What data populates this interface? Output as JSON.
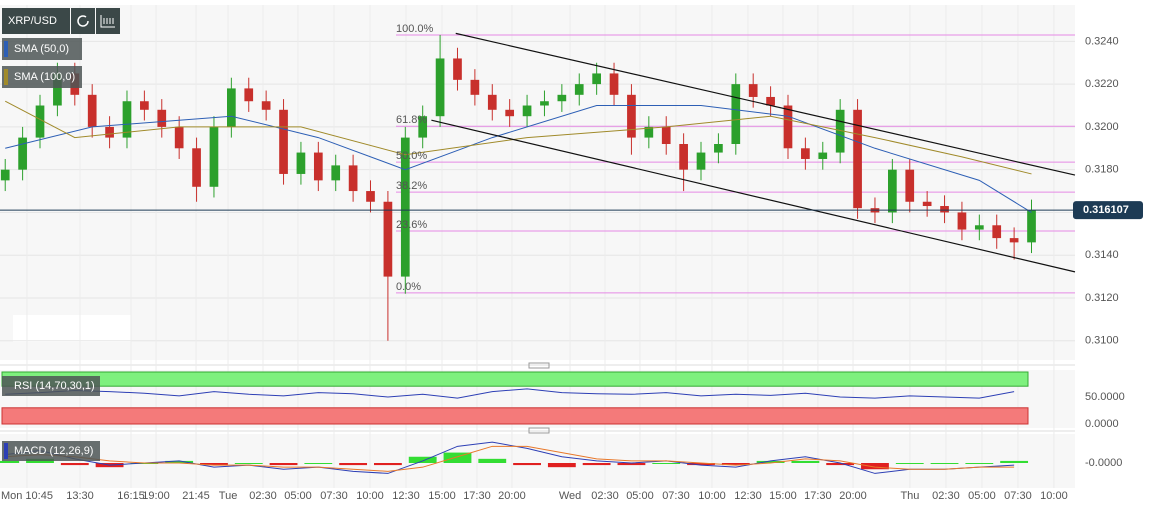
{
  "chart_data": {
    "type": "candlestick",
    "symbol": "XRP/USD",
    "xlim": [
      -0.3,
      61.5
    ],
    "ylim": [
      0.3091,
      0.3257
    ],
    "yticks": [
      {
        "value": 0.31,
        "label": "0.3100"
      },
      {
        "value": 0.312,
        "label": "0.3120"
      },
      {
        "value": 0.314,
        "label": "0.3140"
      },
      {
        "value": 0.316,
        "label": "0.3160"
      },
      {
        "value": 0.318,
        "label": "0.3180"
      },
      {
        "value": 0.32,
        "label": "0.3200"
      },
      {
        "value": 0.322,
        "label": "0.3220"
      },
      {
        "value": 0.324,
        "label": "0.3240"
      }
    ],
    "xticks": [
      {
        "value": 1.25,
        "label": "Mon 10:45"
      },
      {
        "value": 4.3,
        "label": "13:30"
      },
      {
        "value": 7.23,
        "label": "16:15"
      },
      {
        "value": 8.67,
        "label": "19:00"
      },
      {
        "value": 10.97,
        "label": "21:45"
      },
      {
        "value": 12.81,
        "label": "Tue"
      },
      {
        "value": 14.82,
        "label": "02:30"
      },
      {
        "value": 16.83,
        "label": "05:00"
      },
      {
        "value": 18.9,
        "label": "07:30"
      },
      {
        "value": 20.97,
        "label": "10:00"
      },
      {
        "value": 23.04,
        "label": "12:30"
      },
      {
        "value": 25.11,
        "label": "15:00"
      },
      {
        "value": 27.12,
        "label": "17:30"
      },
      {
        "value": 29.13,
        "label": "20:00"
      },
      {
        "value": 32.47,
        "label": "Wed"
      },
      {
        "value": 34.48,
        "label": "02:30"
      },
      {
        "value": 36.49,
        "label": "05:00"
      },
      {
        "value": 38.56,
        "label": "07:30"
      },
      {
        "value": 40.63,
        "label": "10:00"
      },
      {
        "value": 42.7,
        "label": "12:30"
      },
      {
        "value": 44.71,
        "label": "15:00"
      },
      {
        "value": 46.72,
        "label": "17:30"
      },
      {
        "value": 48.74,
        "label": "20:00"
      },
      {
        "value": 52.01,
        "label": "Thu"
      },
      {
        "value": 54.08,
        "label": "02:30"
      },
      {
        "value": 56.15,
        "label": "05:00"
      },
      {
        "value": 58.22,
        "label": "07:30"
      },
      {
        "value": 60.29,
        "label": "10:00"
      }
    ],
    "up_color": "#2ca02c",
    "down_color": "#c8302c",
    "candles": {
      "open": [
        0.3175,
        0.318,
        0.3195,
        0.321,
        0.3225,
        0.3215,
        0.32,
        0.3195,
        0.3212,
        0.3208,
        0.32,
        0.319,
        0.3172,
        0.32,
        0.3218,
        0.3212,
        0.3208,
        0.3178,
        0.3188,
        0.3175,
        0.3182,
        0.317,
        0.3165,
        0.313,
        0.3195,
        0.3205,
        0.3232,
        0.3222,
        0.3215,
        0.3208,
        0.3205,
        0.321,
        0.3212,
        0.3215,
        0.322,
        0.3225,
        0.3215,
        0.3195,
        0.32,
        0.3192,
        0.318,
        0.3188,
        0.3192,
        0.322,
        0.3214,
        0.321,
        0.319,
        0.3185,
        0.3188,
        0.3208,
        0.3162,
        0.316,
        0.318,
        0.3165,
        0.3163,
        0.316,
        0.3152,
        0.3154,
        0.3148,
        0.3146
      ],
      "high": [
        0.3185,
        0.32,
        0.3215,
        0.323,
        0.323,
        0.322,
        0.3205,
        0.3217,
        0.3217,
        0.3213,
        0.3205,
        0.3195,
        0.3205,
        0.3223,
        0.3223,
        0.3217,
        0.3213,
        0.3193,
        0.3193,
        0.3187,
        0.3187,
        0.3175,
        0.317,
        0.32,
        0.321,
        0.3243,
        0.3237,
        0.3227,
        0.322,
        0.3213,
        0.3215,
        0.3217,
        0.322,
        0.3225,
        0.323,
        0.323,
        0.322,
        0.3205,
        0.3205,
        0.3197,
        0.3193,
        0.3197,
        0.3225,
        0.3225,
        0.3219,
        0.3215,
        0.3195,
        0.3193,
        0.3213,
        0.3213,
        0.3167,
        0.3185,
        0.3185,
        0.317,
        0.3168,
        0.3165,
        0.3159,
        0.3159,
        0.3153,
        0.3166
      ],
      "low": [
        0.317,
        0.3175,
        0.319,
        0.3205,
        0.321,
        0.3195,
        0.319,
        0.319,
        0.3203,
        0.3195,
        0.3185,
        0.3165,
        0.3167,
        0.3195,
        0.3207,
        0.3203,
        0.3173,
        0.3173,
        0.317,
        0.317,
        0.3165,
        0.316,
        0.31,
        0.3122,
        0.319,
        0.32,
        0.3217,
        0.321,
        0.3203,
        0.32,
        0.32,
        0.3205,
        0.3207,
        0.321,
        0.3215,
        0.321,
        0.3187,
        0.319,
        0.3187,
        0.317,
        0.3175,
        0.3183,
        0.3187,
        0.3209,
        0.3205,
        0.3185,
        0.318,
        0.318,
        0.3183,
        0.3157,
        0.3155,
        0.3155,
        0.316,
        0.3158,
        0.3155,
        0.3147,
        0.3147,
        0.3143,
        0.3138,
        0.3141
      ],
      "close": [
        0.318,
        0.3195,
        0.321,
        0.3225,
        0.3215,
        0.32,
        0.3195,
        0.3212,
        0.3208,
        0.32,
        0.319,
        0.3172,
        0.32,
        0.3218,
        0.3212,
        0.3208,
        0.3178,
        0.3188,
        0.3175,
        0.3182,
        0.317,
        0.3165,
        0.313,
        0.3195,
        0.3205,
        0.3232,
        0.3222,
        0.3215,
        0.3208,
        0.3205,
        0.321,
        0.3212,
        0.3215,
        0.322,
        0.3225,
        0.3215,
        0.3195,
        0.32,
        0.3192,
        0.318,
        0.3188,
        0.3192,
        0.322,
        0.3214,
        0.321,
        0.319,
        0.3185,
        0.3188,
        0.3208,
        0.3162,
        0.316,
        0.318,
        0.3165,
        0.3163,
        0.316,
        0.3152,
        0.3154,
        0.3148,
        0.3146,
        0.3161
      ]
    },
    "overlays": [
      {
        "name": "SMA (50,0)",
        "color": "#2d5fb5",
        "x": [
          0,
          5,
          13,
          18,
          23,
          28,
          34,
          40,
          45,
          50,
          56,
          59
        ],
        "values": [
          0.319,
          0.32,
          0.3205,
          0.3195,
          0.318,
          0.3195,
          0.321,
          0.321,
          0.3205,
          0.319,
          0.3175,
          0.316
        ]
      },
      {
        "name": "SMA (100,0)",
        "color": "#a08a2a",
        "x": [
          0,
          4,
          10,
          17,
          23,
          30,
          38,
          44,
          50,
          55,
          59
        ],
        "values": [
          0.3212,
          0.3195,
          0.32,
          0.32,
          0.3187,
          0.3195,
          0.32,
          0.3205,
          0.3195,
          0.3186,
          0.3178
        ]
      }
    ],
    "channel": [
      {
        "x": [
          25.9,
          61.5
        ],
        "values": [
          0.324373,
          0.317747
        ]
      },
      {
        "x": [
          24.5,
          61.5
        ],
        "values": [
          0.320313,
          0.31322
        ]
      }
    ],
    "fib_levels": [
      {
        "label": "100.0%",
        "value": 0.3243
      },
      {
        "label": "61.8%",
        "value": 0.32003
      },
      {
        "label": "50.0%",
        "value": 0.31835
      },
      {
        "label": "38.2%",
        "value": 0.31695
      },
      {
        "label": "23.6%",
        "value": 0.31513
      },
      {
        "label": "0.0%",
        "value": 0.31224
      }
    ],
    "last_price": 0.316107,
    "rsi": {
      "name": "RSI (14,70,30,1)",
      "color": "#2d3fb5",
      "ylim": [
        0,
        100
      ],
      "yticks": [
        {
          "value": 50,
          "label": "50.0000"
        },
        {
          "value": 0,
          "label": "0.0000"
        }
      ],
      "overbought": 70,
      "oversold": 30,
      "x": [
        0,
        2,
        4,
        6,
        8,
        10,
        12,
        14,
        16,
        18,
        20,
        22,
        24,
        26,
        28,
        30,
        32,
        34,
        36,
        38,
        40,
        42,
        44,
        46,
        48,
        50,
        52,
        54,
        56,
        58
      ],
      "values": [
        55,
        58,
        62,
        60,
        57,
        52,
        60,
        55,
        52,
        58,
        56,
        50,
        55,
        48,
        60,
        65,
        58,
        56,
        55,
        58,
        52,
        55,
        53,
        57,
        50,
        48,
        52,
        50,
        48,
        60
      ]
    },
    "macd": {
      "name": "MACD (12,26,9)",
      "macd_color": "#2d3fb5",
      "signal_color": "#e8782a",
      "up_color": "#33dd33",
      "down_color": "#e02020",
      "ylim": [
        -0.0012,
        0.0012
      ],
      "yticks": [
        {
          "value": 0,
          "label": "-0.0000"
        }
      ],
      "x": [
        0,
        2,
        4,
        6,
        8,
        10,
        12,
        14,
        16,
        18,
        20,
        22,
        24,
        26,
        28,
        30,
        32,
        34,
        36,
        38,
        40,
        42,
        44,
        46,
        48,
        50,
        52,
        54,
        56,
        58
      ],
      "macd": [
        0.0004,
        0.0006,
        0.0002,
        -0.0001,
        0.0,
        0.0001,
        -0.0002,
        -0.0001,
        -0.0003,
        -0.0002,
        -0.0004,
        -0.0005,
        0.0001,
        0.0008,
        0.001,
        0.0007,
        0.0003,
        0.0001,
        0.0,
        0.0001,
        -0.0001,
        -0.0002,
        0.0001,
        0.0003,
        0.0,
        -0.0005,
        -0.0003,
        -0.0003,
        -0.0002,
        -0.0001
      ],
      "signal": [
        0.0003,
        0.0004,
        0.0003,
        0.0001,
        0.0,
        0.0,
        -0.0001,
        -0.0001,
        -0.0002,
        -0.0002,
        -0.0003,
        -0.0004,
        -0.0002,
        0.0003,
        0.0008,
        0.0008,
        0.0005,
        0.0002,
        0.0001,
        0.0001,
        0.0,
        -0.0001,
        0.0,
        0.0002,
        0.0001,
        -0.0002,
        -0.0003,
        -0.0003,
        -0.0002,
        -0.0002
      ],
      "histogram": [
        0.0001,
        0.0002,
        -0.0001,
        -0.0002,
        0,
        0.0001,
        -0.0001,
        0,
        -0.0001,
        0,
        -0.0001,
        -0.0001,
        0.0003,
        0.0005,
        0.0002,
        -0.0001,
        -0.0002,
        -0.0001,
        -0.0001,
        0,
        -0.0001,
        -0.0001,
        0.0001,
        0.0001,
        -0.0001,
        -0.0003,
        0,
        0,
        0,
        0.0001
      ]
    }
  }
}
